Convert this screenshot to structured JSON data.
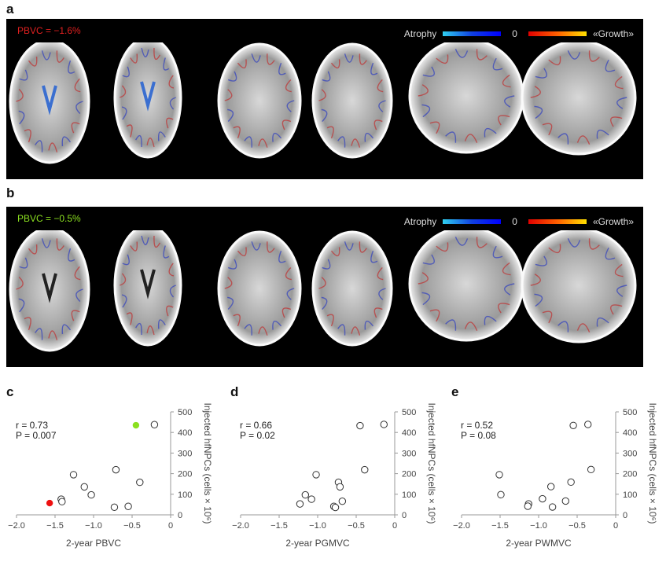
{
  "panels": {
    "a": {
      "letter": "a",
      "pbvc_text": "PBVC = −1.6%",
      "pbvc_color": "#e02020"
    },
    "b": {
      "letter": "b",
      "pbvc_text": "PBVC = −0.5%",
      "pbvc_color": "#8be020"
    }
  },
  "colorbar": {
    "left_label": "Atrophy",
    "center_label": "0",
    "right_label": "«Growth»"
  },
  "chart_data": [
    {
      "panel": "c",
      "type": "scatter",
      "xlabel": "2-year PBVC",
      "ylabel": "Injected hfNPCs (cells × 10⁶)",
      "xlim": [
        -2.0,
        0
      ],
      "ylim": [
        0,
        500
      ],
      "xticks": [
        "−2.0",
        "−1.5",
        "−1.0",
        "−0.5",
        "0"
      ],
      "yticks": [
        "0",
        "100",
        "200",
        "300",
        "400",
        "500"
      ],
      "stats": {
        "r": "r = 0.73",
        "P": "P = 0.007"
      },
      "points": [
        {
          "x": -0.45,
          "y": 435,
          "color": "#8be020"
        },
        {
          "x": -0.21,
          "y": 438
        },
        {
          "x": -0.71,
          "y": 219
        },
        {
          "x": -1.26,
          "y": 195
        },
        {
          "x": -0.4,
          "y": 158
        },
        {
          "x": -1.12,
          "y": 136
        },
        {
          "x": -1.03,
          "y": 97
        },
        {
          "x": -1.42,
          "y": 76
        },
        {
          "x": -1.41,
          "y": 64
        },
        {
          "x": -1.57,
          "y": 57,
          "color": "#ee1010"
        },
        {
          "x": -0.73,
          "y": 37
        },
        {
          "x": -0.55,
          "y": 41
        }
      ]
    },
    {
      "panel": "d",
      "type": "scatter",
      "xlabel": "2-year PGMVC",
      "ylabel": "Injected hfNPCs (cells × 10⁶)",
      "xlim": [
        -2.0,
        0
      ],
      "ylim": [
        0,
        500
      ],
      "xticks": [
        "−2.0",
        "−1.5",
        "−1.0",
        "−0.5",
        "0"
      ],
      "yticks": [
        "0",
        "100",
        "200",
        "300",
        "400",
        "500"
      ],
      "stats": {
        "r": "r = 0.66",
        "P": "P = 0.02"
      },
      "points": [
        {
          "x": -0.45,
          "y": 433
        },
        {
          "x": -0.14,
          "y": 439
        },
        {
          "x": -0.39,
          "y": 219
        },
        {
          "x": -1.02,
          "y": 195
        },
        {
          "x": -0.73,
          "y": 158
        },
        {
          "x": -0.71,
          "y": 136
        },
        {
          "x": -1.16,
          "y": 97
        },
        {
          "x": -1.08,
          "y": 76
        },
        {
          "x": -1.23,
          "y": 53
        },
        {
          "x": -0.68,
          "y": 66
        },
        {
          "x": -0.79,
          "y": 41
        },
        {
          "x": -0.77,
          "y": 36
        }
      ]
    },
    {
      "panel": "e",
      "type": "scatter",
      "xlabel": "2-year PWMVC",
      "ylabel": "Injected hfNPCs (cells × 10⁶)",
      "xlim": [
        -2.0,
        0
      ],
      "ylim": [
        0,
        500
      ],
      "xticks": [
        "−2.0",
        "−1.5",
        "−1.0",
        "−0.5",
        "0"
      ],
      "yticks": [
        "0",
        "100",
        "200",
        "300",
        "400",
        "500"
      ],
      "stats": {
        "r": "r = 0.52",
        "P": "P = 0.08"
      },
      "points": [
        {
          "x": -0.55,
          "y": 434
        },
        {
          "x": -0.36,
          "y": 439
        },
        {
          "x": -0.32,
          "y": 220
        },
        {
          "x": -1.51,
          "y": 195
        },
        {
          "x": -0.58,
          "y": 159
        },
        {
          "x": -0.84,
          "y": 137
        },
        {
          "x": -1.49,
          "y": 98
        },
        {
          "x": -0.95,
          "y": 78
        },
        {
          "x": -1.13,
          "y": 53
        },
        {
          "x": -1.14,
          "y": 42
        },
        {
          "x": -0.65,
          "y": 67
        },
        {
          "x": -0.82,
          "y": 38
        }
      ]
    }
  ]
}
